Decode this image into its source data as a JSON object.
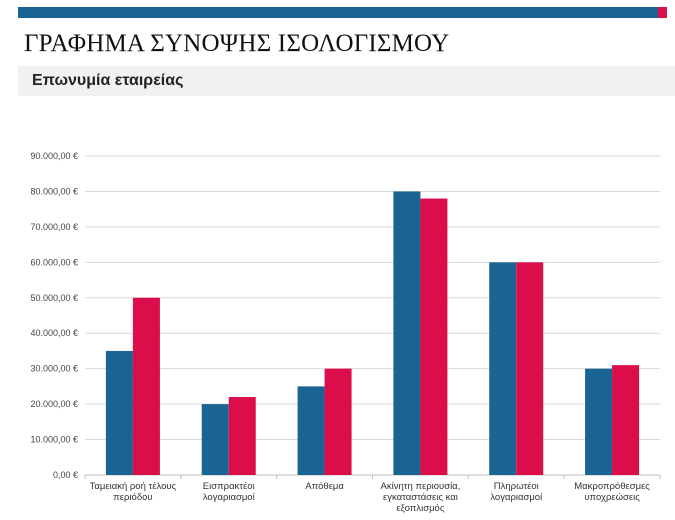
{
  "header": {
    "title": "ΓΡΑΦΗΜΑ ΣΥΝΟΨΗΣ ΙΣΟΛΟΓΙΣΜΟΥ",
    "subtitle": "Επωνυμία εταιρείας"
  },
  "colors": {
    "accent_blue": "#1a6494",
    "accent_red": "#dc0d4b",
    "grid": "#d9d9d9"
  },
  "chart_data": {
    "type": "bar",
    "categories": [
      [
        "Ταμειακή ροή τέλους",
        "περιόδου"
      ],
      [
        "Εισπρακτέοι",
        "λογαριασμοί"
      ],
      [
        "Απόθεμα"
      ],
      [
        "Ακίνητη περιουσία,",
        "εγκαταστάσεις και",
        "εξοπλισμός"
      ],
      [
        "Πληρωτέοι",
        "λογαριασμοί"
      ],
      [
        "Μακροπρόθεσμες",
        "υποχρεώσεις"
      ]
    ],
    "series": [
      {
        "color": "#1a6494",
        "values": [
          35000,
          20000,
          25000,
          80000,
          60000,
          30000
        ]
      },
      {
        "color": "#dc0d4b",
        "values": [
          50000,
          22000,
          30000,
          78000,
          60000,
          31000
        ]
      }
    ],
    "ylim": [
      0,
      90000
    ],
    "ytick_step": 10000,
    "ytick_labels": [
      "0,00 €",
      "10.000,00 €",
      "20.000,00 €",
      "30.000,00 €",
      "40.000,00 €",
      "50.000,00 €",
      "60.000,00 €",
      "70.000,00 €",
      "80.000,00 €",
      "90.000,00 €"
    ],
    "grid": true,
    "legend": "none"
  }
}
